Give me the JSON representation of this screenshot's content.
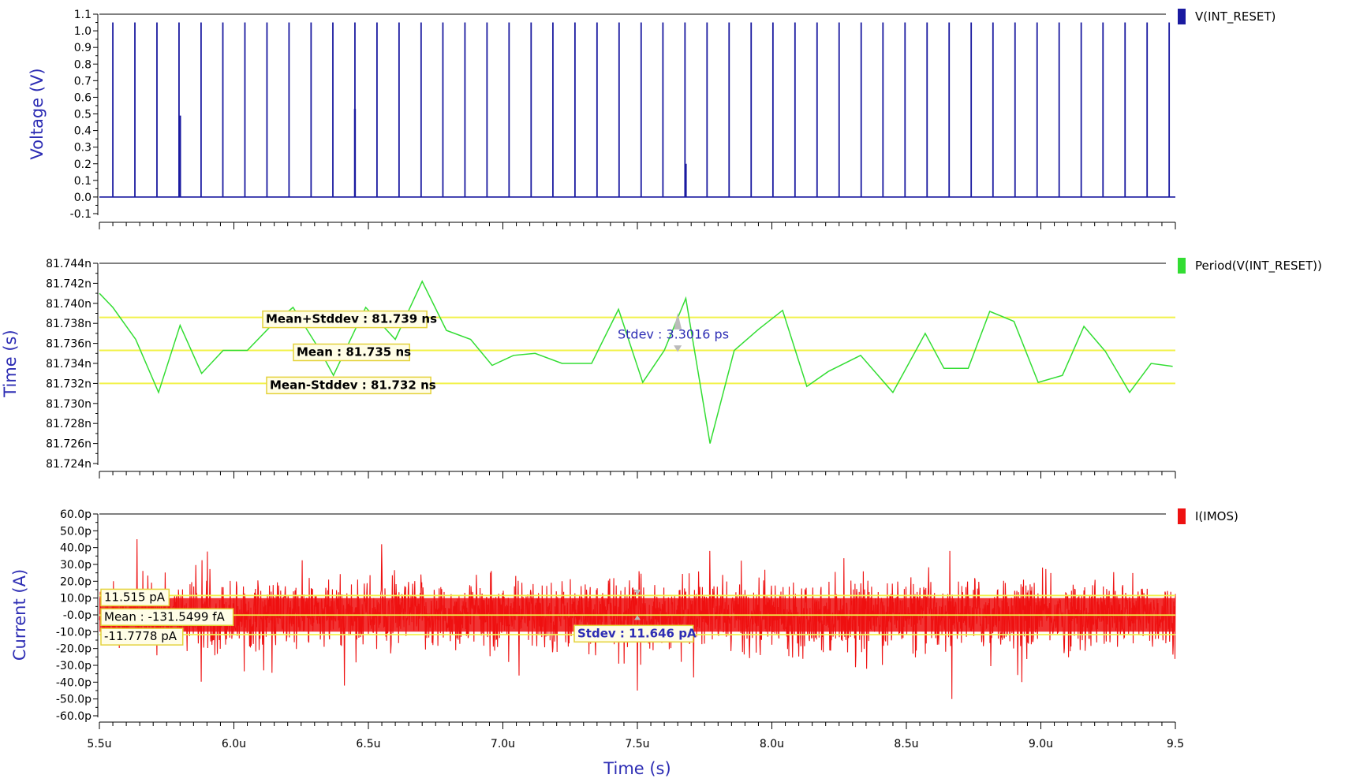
{
  "chart_data": [
    {
      "type": "line",
      "ylabel": "Voltage (V)",
      "yticks": [
        "1.1",
        "1.0",
        "0.9",
        "0.8",
        "0.7",
        "0.6",
        "0.5",
        "0.4",
        "0.3",
        "0.2",
        "0.1",
        "0.0",
        "-0.1"
      ],
      "ylim": [
        -0.1,
        1.1
      ],
      "xlim": [
        5.5,
        9.5
      ],
      "grid": false,
      "legend_position": "top-right",
      "color": "#1a1aa0",
      "series": [
        {
          "name": "V(INT_RESET)",
          "baseline": 0.0,
          "spike_height": 1.05,
          "spikes_x": [
            5.55,
            5.632,
            5.714,
            5.796,
            5.878,
            5.959,
            6.041,
            6.123,
            6.205,
            6.287,
            6.368,
            6.45,
            6.532,
            6.614,
            6.696,
            6.777,
            6.859,
            6.941,
            7.023,
            7.105,
            7.186,
            7.268,
            7.35,
            7.432,
            7.514,
            7.595,
            7.677,
            7.759,
            7.841,
            7.923,
            8.004,
            8.086,
            8.168,
            8.25,
            8.332,
            8.413,
            8.495,
            8.577,
            8.659,
            8.741,
            8.822,
            8.904,
            8.986,
            9.068,
            9.15,
            9.231,
            9.313,
            9.395,
            9.477
          ],
          "partial_pulses": [
            {
              "x": 5.8,
              "y": 0.49
            },
            {
              "x": 6.45,
              "y": 0.53
            },
            {
              "x": 7.68,
              "y": 0.2
            }
          ]
        }
      ]
    },
    {
      "type": "line",
      "ylabel": "Time (s)",
      "yticks": [
        "81.744n",
        "81.742n",
        "81.740n",
        "81.738n",
        "81.736n",
        "81.734n",
        "81.732n",
        "81.730n",
        "81.728n",
        "81.726n",
        "81.724n"
      ],
      "ylim": [
        81.724,
        81.744
      ],
      "xlim": [
        5.5,
        9.5
      ],
      "grid": false,
      "legend_position": "top-right",
      "color": "#33dd33",
      "series": [
        {
          "name": "Period(V(INT_RESET))",
          "x": [
            5.5,
            5.55,
            5.635,
            5.72,
            5.8,
            5.88,
            5.96,
            6.05,
            6.14,
            6.22,
            6.32,
            6.37,
            6.49,
            6.6,
            6.7,
            6.79,
            6.88,
            6.96,
            7.04,
            7.12,
            7.22,
            7.33,
            7.43,
            7.52,
            7.6,
            7.68,
            7.77,
            7.86,
            7.95,
            8.04,
            8.13,
            8.21,
            8.33,
            8.45,
            8.57,
            8.64,
            8.73,
            8.81,
            8.9,
            8.99,
            9.08,
            9.16,
            9.24,
            9.33,
            9.41,
            9.49
          ],
          "y": [
            81.741,
            81.7396,
            81.7364,
            81.7311,
            81.7378,
            81.733,
            81.7353,
            81.7353,
            81.7378,
            81.7396,
            81.7353,
            81.7328,
            81.7396,
            81.7364,
            81.7422,
            81.7373,
            81.7364,
            81.7338,
            81.7348,
            81.735,
            81.734,
            81.734,
            81.7394,
            81.7321,
            81.7353,
            81.7405,
            81.726,
            81.7353,
            81.7374,
            81.7393,
            81.7317,
            81.7332,
            81.7348,
            81.7311,
            81.737,
            81.7335,
            81.7335,
            81.7392,
            81.7382,
            81.7321,
            81.7328,
            81.7377,
            81.7352,
            81.7311,
            81.734,
            81.7337
          ]
        }
      ],
      "annotations": [
        {
          "label": "Mean+Stddev : 81.739 ns",
          "y": 81.7386
        },
        {
          "label": "Mean : 81.735 ns",
          "y": 81.7353
        },
        {
          "label": "Mean-Stddev : 81.732 ns",
          "y": 81.732
        },
        {
          "label": "Stdev : 3.3016 ps"
        }
      ]
    },
    {
      "type": "line",
      "ylabel": "Current (A)",
      "yticks": [
        "60.0p",
        "50.0p",
        "40.0p",
        "30.0p",
        "20.0p",
        "10.0p",
        "-0.0p",
        "-10.0p",
        "-20.0p",
        "-30.0p",
        "-40.0p",
        "-50.0p",
        "-60.0p"
      ],
      "ylim": [
        -60,
        60
      ],
      "xlim": [
        5.5,
        9.5
      ],
      "grid": false,
      "legend_position": "top-right",
      "color": "#ee1111",
      "series": [
        {
          "name": "I(IMOS)",
          "noise_stdev": 11.646,
          "noise_mean": -0.1315,
          "peaks": [
            {
              "x": 5.64,
              "y": 45
            },
            {
              "x": 6.55,
              "y": 42
            },
            {
              "x": 7.5,
              "y": -45
            },
            {
              "x": 8.67,
              "y": -50
            },
            {
              "x": 7.77,
              "y": 38
            },
            {
              "x": 8.93,
              "y": -40
            }
          ]
        }
      ],
      "annotations": [
        {
          "label": "11.515 pA",
          "y": 11.515
        },
        {
          "label": "Mean : -131.5499 fA",
          "y": -0.1315
        },
        {
          "label": "-11.7778 pA",
          "y": -11.7778
        },
        {
          "label": "Stdev : 11.646 pA"
        }
      ]
    }
  ],
  "x_axis": {
    "label": "Time (s)",
    "ticks": [
      {
        "v": 5.5,
        "t": "5.5u"
      },
      {
        "v": 6.0,
        "t": "6.0u"
      },
      {
        "v": 6.5,
        "t": "6.5u"
      },
      {
        "v": 7.0,
        "t": "7.0u"
      },
      {
        "v": 7.5,
        "t": "7.5u"
      },
      {
        "v": 8.0,
        "t": "8.0u"
      },
      {
        "v": 8.5,
        "t": "8.5u"
      },
      {
        "v": 9.0,
        "t": "9.0u"
      },
      {
        "v": 9.5,
        "t": "9.5"
      }
    ]
  },
  "colors": {
    "axis_label": "#2d2db4",
    "mean_lines": "#f2f24a",
    "annot_bg": "#fffde6",
    "annot_border": "#e4d23a"
  }
}
